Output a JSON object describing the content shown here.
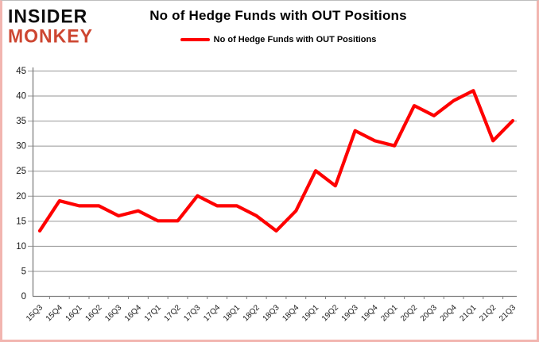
{
  "header": {
    "logo_line1": "INSIDER",
    "logo_line2": "MONKEY",
    "title": "No of Hedge Funds with OUT Positions",
    "legend_label": "No of Hedge Funds with OUT Positions"
  },
  "colors": {
    "series_line": "#fe0000",
    "logo_insider": "#0d0d0d",
    "logo_monkey": "#cd4631",
    "gridline": "#969696",
    "axis": "#7f7f7f",
    "tick_text": "#1a1a1a",
    "frame_pink": "#f2b5b0"
  },
  "chart_data": {
    "type": "line",
    "title": "No of Hedge Funds with OUT Positions",
    "legend_position": "top",
    "grid": true,
    "xlabel": "",
    "ylabel": "",
    "ylim": [
      0,
      45
    ],
    "ytick_step": 5,
    "yticks": [
      0,
      5,
      10,
      15,
      20,
      25,
      30,
      35,
      40,
      45
    ],
    "categories": [
      "15Q3",
      "15Q4",
      "16Q1",
      "16Q2",
      "16Q3",
      "16Q4",
      "17Q1",
      "17Q2",
      "17Q3",
      "17Q4",
      "18Q1",
      "18Q2",
      "18Q3",
      "18Q4",
      "19Q1",
      "19Q2",
      "19Q3",
      "19Q4",
      "20Q1",
      "20Q2",
      "20Q3",
      "20Q4",
      "21Q1",
      "21Q2",
      "21Q3"
    ],
    "series": [
      {
        "name": "No of Hedge Funds with OUT Positions",
        "values": [
          13,
          19,
          18,
          18,
          16,
          17,
          15,
          15,
          20,
          18,
          18,
          16,
          13,
          17,
          25,
          22,
          33,
          31,
          30,
          38,
          36,
          39,
          41,
          31,
          35
        ]
      }
    ]
  }
}
